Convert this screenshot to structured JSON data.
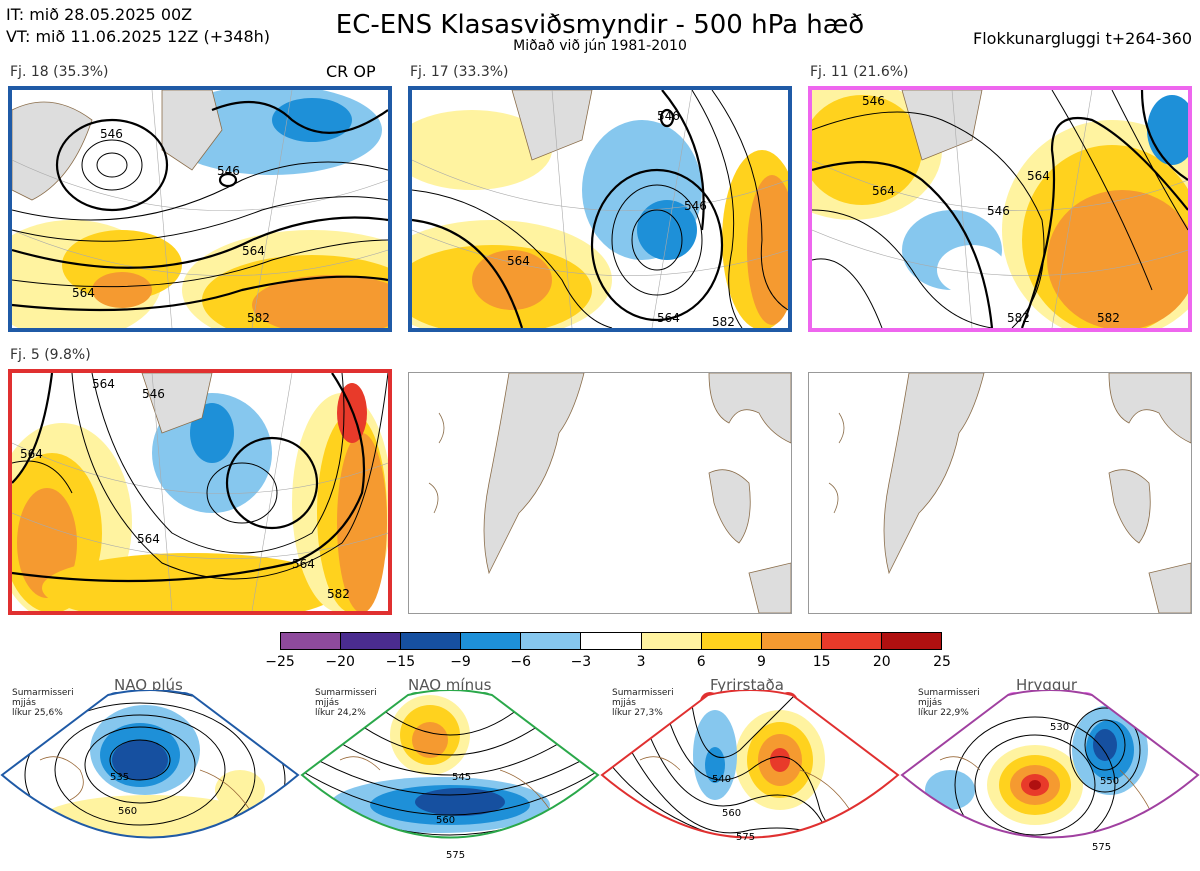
{
  "header": {
    "it": "IT: mið 28.05.2025 00Z",
    "vt": "VT: mið 11.06.2025 12Z  (+348h)",
    "title": "EC-ENS Klasasviðsmyndir - 500 hPa hæð",
    "subtitle": "Miðað við jún 1981-2010",
    "window": "Flokkunargluggi t+264-360"
  },
  "clusters": [
    {
      "label": "Fj. 18 (35.3%)",
      "color": "#1f5aa6",
      "extra": "CR OP",
      "contours": [
        "546",
        "546",
        "564",
        "564",
        "582"
      ]
    },
    {
      "label": "Fj. 17 (33.3%)",
      "color": "#1f5aa6",
      "contours": [
        "546",
        "546",
        "564",
        "564",
        "582"
      ]
    },
    {
      "label": "Fj. 11 (21.6%)",
      "color": "#ee66ee",
      "contours": [
        "546",
        "546",
        "564",
        "564",
        "582",
        "582"
      ]
    },
    {
      "label": "Fj. 5 (9.8%)",
      "color": "#e03030",
      "contours": [
        "546",
        "564",
        "564",
        "564",
        "564",
        "582"
      ]
    }
  ],
  "colorbar": {
    "ticks": [
      "−25",
      "−20",
      "−15",
      "−9",
      "−6",
      "−3",
      "3",
      "6",
      "9",
      "15",
      "20",
      "25"
    ],
    "colors": [
      "#8e4a9c",
      "#4a2c8f",
      "#1650a0",
      "#1e90d8",
      "#86c7ee",
      "#ffffff",
      "#fff3a0",
      "#ffd21e",
      "#f59a30",
      "#e83a2a",
      "#b01010"
    ]
  },
  "regimes": [
    {
      "name": "NAO plús",
      "note": "Sumarmisseri\nmjjás\nlíkur 25,6%",
      "color": "#1f5aa6",
      "contours": [
        "535",
        "560"
      ]
    },
    {
      "name": "NAO mínus",
      "note": "Sumarmisseri\nmjjás\nlíkur 24,2%",
      "color": "#2aa84a",
      "contours": [
        "545",
        "560",
        "575"
      ]
    },
    {
      "name": "Fyrirstaða",
      "note": "Sumarmisseri\nmjjás\nlíkur 27,3%",
      "color": "#e03030",
      "contours": [
        "540",
        "560",
        "575"
      ]
    },
    {
      "name": "Hryggur",
      "note": "Sumarmisseri\nmjjás\nlíkur 22,9%",
      "color": "#a040a0",
      "contours": [
        "530",
        "550",
        "575"
      ]
    }
  ]
}
